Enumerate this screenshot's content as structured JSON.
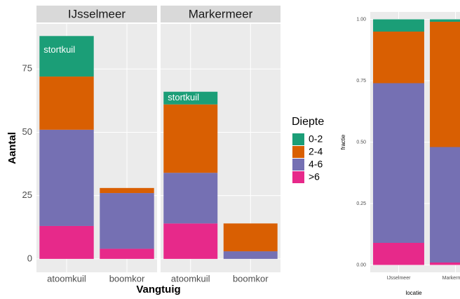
{
  "chart_data": [
    {
      "type": "bar",
      "stacked": true,
      "facets": [
        "IJsselmeer",
        "Markermeer"
      ],
      "categories": [
        "atoomkuil",
        "boomkor"
      ],
      "xlabel": "Vangtuig",
      "ylabel": "Aantal",
      "legend": {
        "title": "Diepte"
      },
      "series": [
        {
          "name": "0-2",
          "color": "#1b9e77",
          "values": [
            [
              16,
              0
            ],
            [
              5,
              0
            ]
          ]
        },
        {
          "name": "2-4",
          "color": "#d95f02",
          "values": [
            [
              21,
              2
            ],
            [
              27,
              11
            ]
          ]
        },
        {
          "name": "4-6",
          "color": "#7570b3",
          "values": [
            [
              38,
              22
            ],
            [
              20,
              3
            ]
          ]
        },
        {
          "name": ">6",
          "color": "#e7298a",
          "values": [
            [
              13,
              4
            ],
            [
              14,
              0
            ]
          ]
        }
      ],
      "annotations": [
        {
          "text": "stortkuil",
          "facet": "IJsselmeer",
          "category": "atoomkuil"
        },
        {
          "text": "stortkuil",
          "facet": "Markermeer",
          "category": "atoomkuil"
        }
      ],
      "ylim": [
        -5.3,
        92.8
      ],
      "yticks": [
        0,
        25,
        50,
        75
      ],
      "grid": true
    },
    {
      "type": "bar",
      "stacked": true,
      "categories": [
        "IJsselmeer",
        "Markermeer"
      ],
      "xlabel": "locatie",
      "ylabel": "fractie",
      "series": [
        {
          "color": "#1b9e77",
          "values": [
            0.05,
            0.01
          ]
        },
        {
          "color": "#d95f02",
          "values": [
            0.21,
            0.51
          ]
        },
        {
          "color": "#7570b3",
          "values": [
            0.65,
            0.47
          ]
        },
        {
          "color": "#e7298a",
          "values": [
            0.09,
            0.01
          ]
        }
      ],
      "ylim": [
        -0.03,
        1.03
      ],
      "yticks": [
        {
          "value": 0,
          "label": "0.00"
        },
        {
          "value": 0.25,
          "label": "0.25"
        },
        {
          "value": 0.5,
          "label": "0.50"
        },
        {
          "value": 0.75,
          "label": "0.75"
        },
        {
          "value": 1,
          "label": "1.00"
        }
      ],
      "grid": true
    }
  ]
}
